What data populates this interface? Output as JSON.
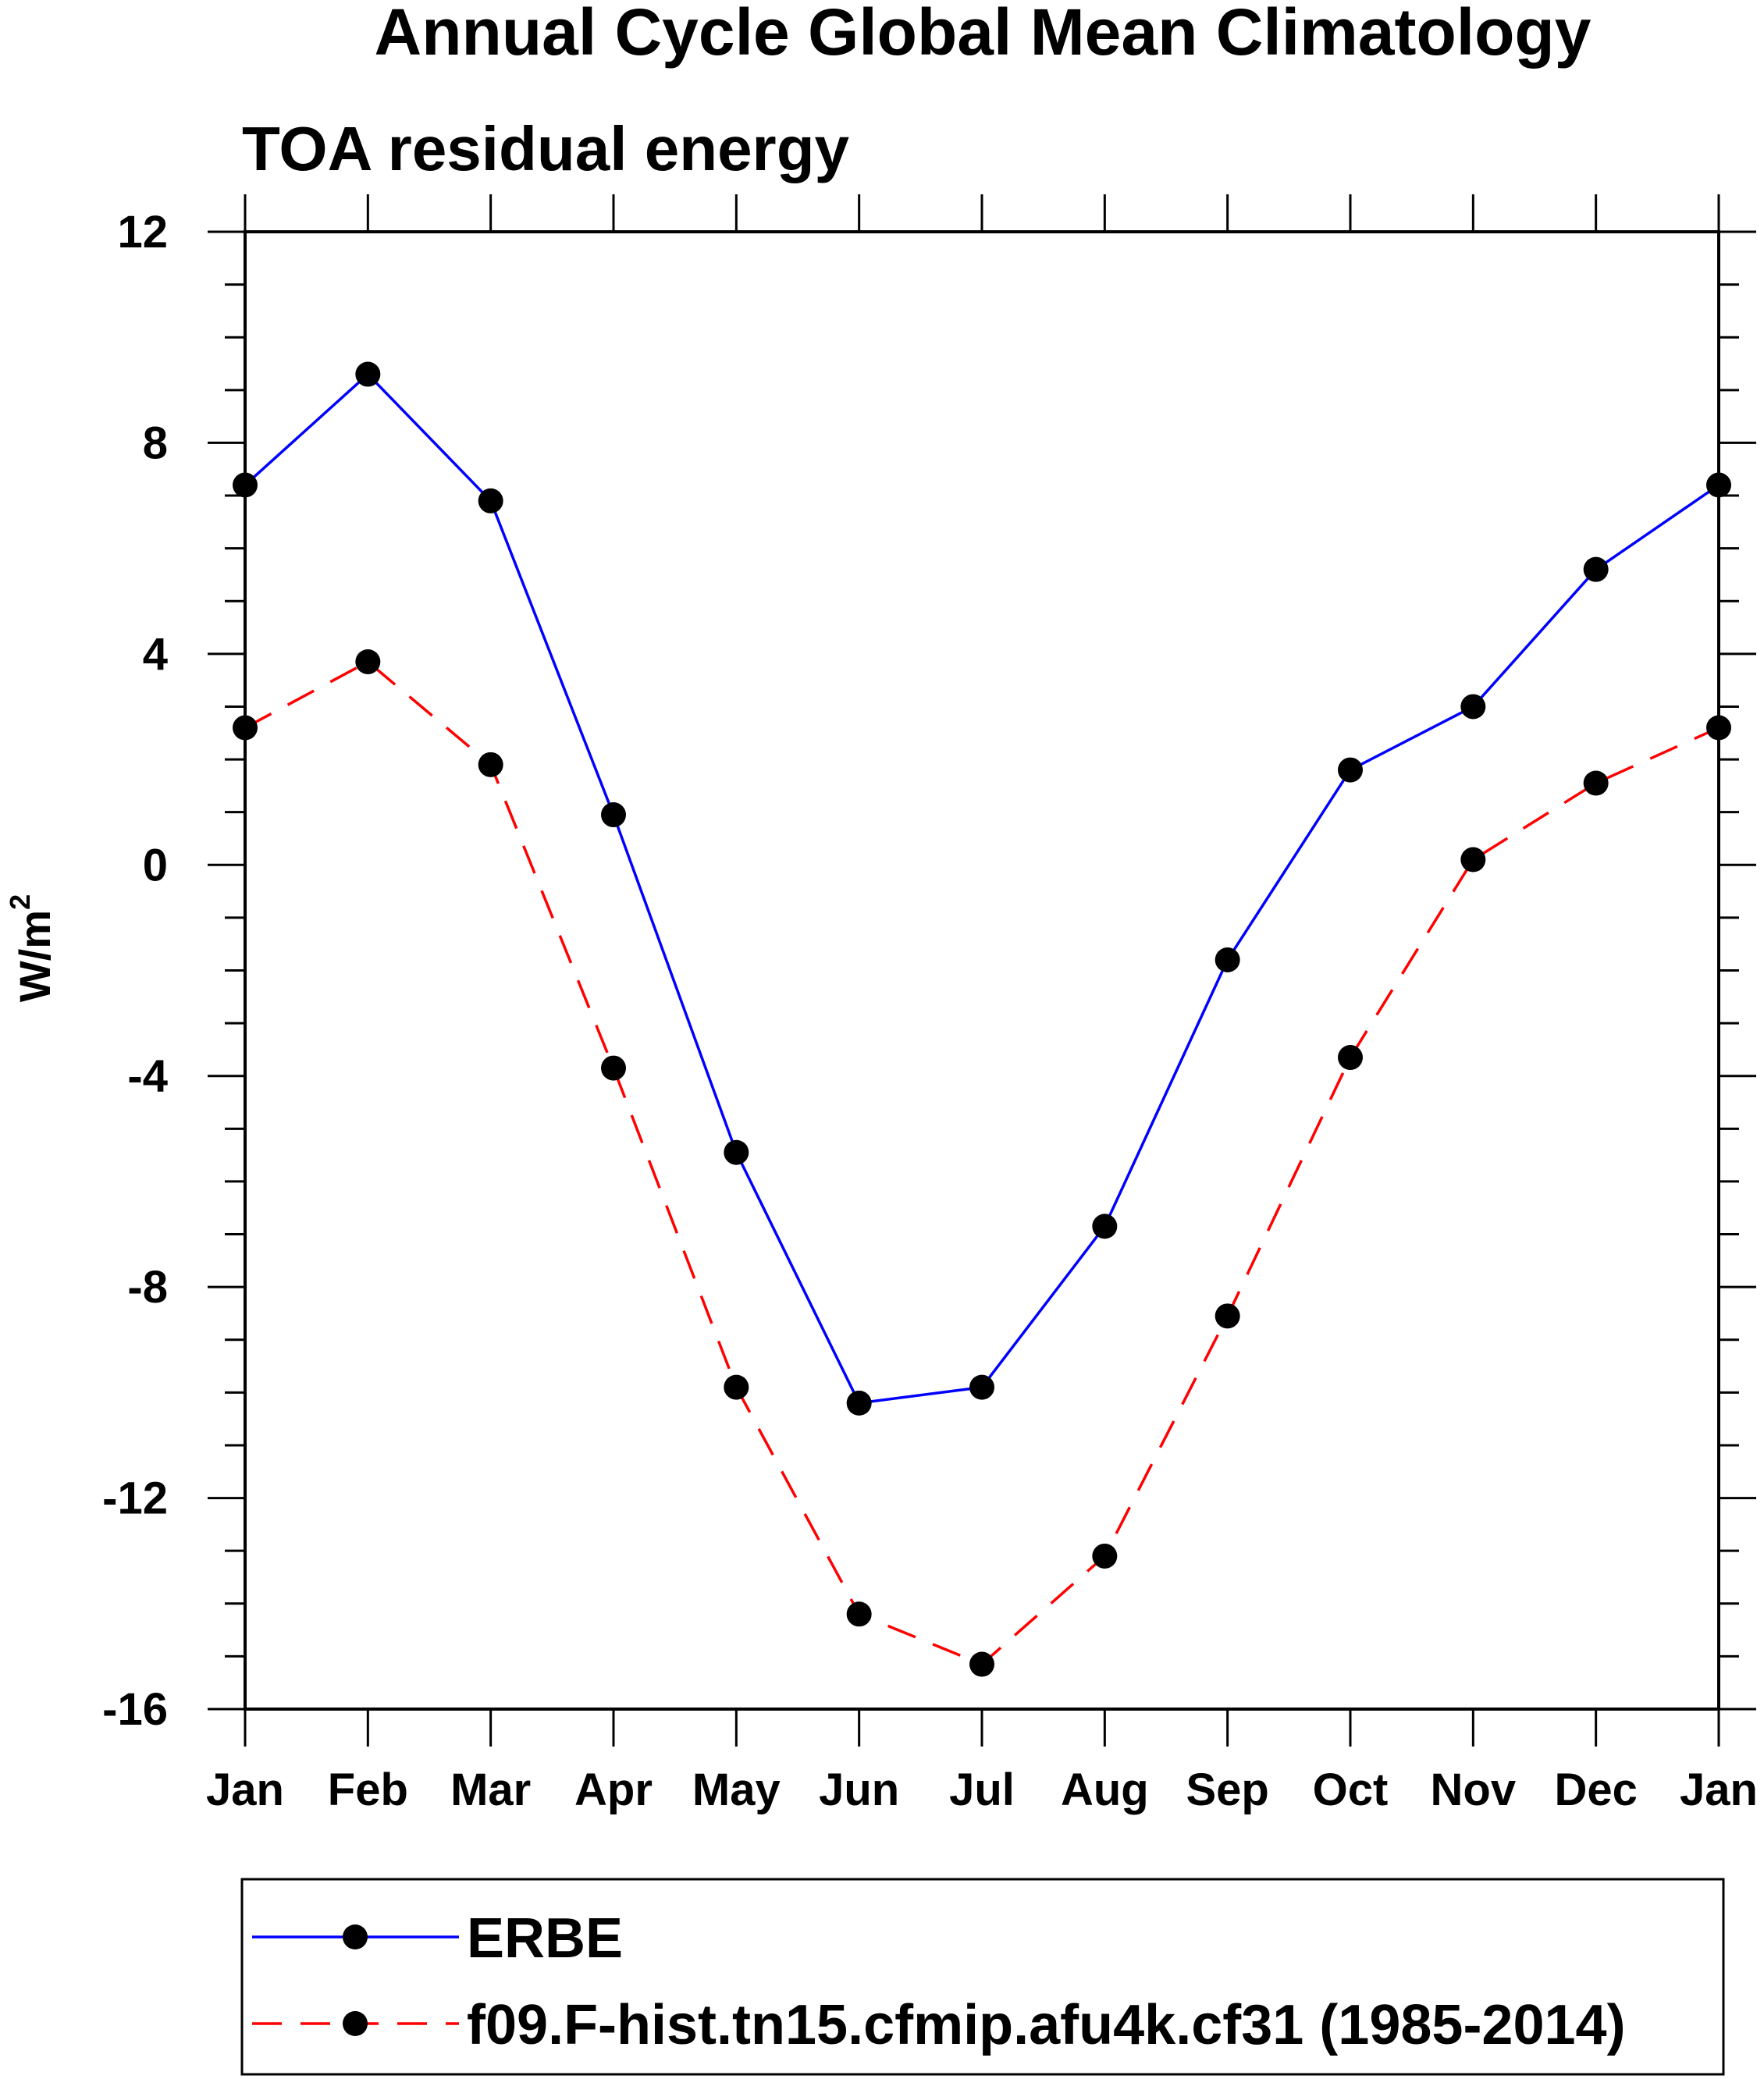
{
  "chart_data": {
    "type": "line",
    "title": "Annual Cycle Global Mean Climatology",
    "subtitle": "TOA residual energy",
    "xlabel": "",
    "ylabel": "W/m",
    "ylabel_superscript": "2",
    "categories": [
      "Jan",
      "Feb",
      "Mar",
      "Apr",
      "May",
      "Jun",
      "Jul",
      "Aug",
      "Sep",
      "Oct",
      "Nov",
      "Dec",
      "Jan"
    ],
    "ylim": [
      -16,
      12
    ],
    "yticks": [
      12,
      8,
      4,
      0,
      -4,
      -8,
      -12,
      -16
    ],
    "ytick_labels": [
      "12",
      "8",
      "4",
      "0",
      "-4",
      "-8",
      "-12",
      "-16"
    ],
    "grid": false,
    "legend_position": "bottom",
    "series": [
      {
        "name": "ERBE",
        "color": "#0000ff",
        "dash": "solid",
        "values": [
          7.2,
          9.3,
          6.9,
          0.95,
          -5.45,
          -10.2,
          -9.9,
          -6.85,
          -1.8,
          1.8,
          3.0,
          5.6,
          7.2
        ]
      },
      {
        "name": "f09.F-hist.tn15.cfmip.afu4k.cf31 (1985-2014)",
        "color": "#ff0000",
        "dash": "dashed",
        "values": [
          2.6,
          3.85,
          1.9,
          -3.85,
          -9.9,
          -14.2,
          -15.15,
          -13.1,
          -8.55,
          -3.65,
          0.1,
          1.55,
          2.6
        ]
      }
    ],
    "marker_color": "#000000",
    "axis_color": "#000000"
  }
}
